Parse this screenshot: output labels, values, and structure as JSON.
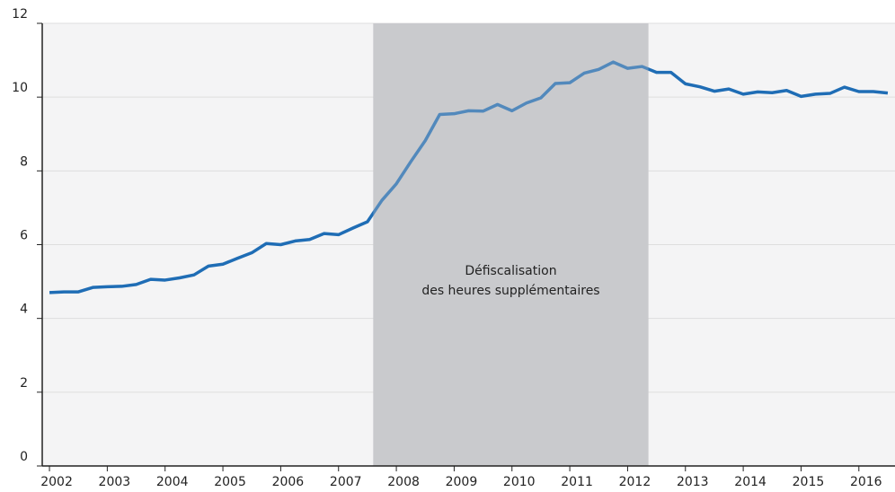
{
  "chart_data": {
    "type": "line",
    "x": [
      2002,
      2002.25,
      2002.5,
      2002.75,
      2003,
      2003.25,
      2003.5,
      2003.75,
      2004,
      2004.25,
      2004.5,
      2004.75,
      2005,
      2005.25,
      2005.5,
      2005.75,
      2006,
      2006.25,
      2006.5,
      2006.75,
      2007,
      2007.25,
      2007.5,
      2007.75,
      2008,
      2008.25,
      2008.5,
      2008.75,
      2009,
      2009.25,
      2009.5,
      2009.75,
      2010,
      2010.25,
      2010.5,
      2010.75,
      2011,
      2011.25,
      2011.5,
      2011.75,
      2012,
      2012.25,
      2012.5,
      2012.75,
      2013,
      2013.25,
      2013.5,
      2013.75,
      2014,
      2014.25,
      2014.5,
      2014.75,
      2015,
      2015.25,
      2015.5,
      2015.75,
      2016,
      2016.25,
      2016.5
    ],
    "series": [
      {
        "color": "#1f6db5",
        "values": [
          4.7,
          4.72,
          4.72,
          4.84,
          4.86,
          4.87,
          4.92,
          5.06,
          5.04,
          5.1,
          5.18,
          5.42,
          5.47,
          5.63,
          5.78,
          6.03,
          6.0,
          6.1,
          6.14,
          6.3,
          6.27,
          6.45,
          6.62,
          7.2,
          7.65,
          8.25,
          8.82,
          9.53,
          9.55,
          9.63,
          9.62,
          9.8,
          9.63,
          9.84,
          9.98,
          10.37,
          10.39,
          10.65,
          10.75,
          10.95,
          10.78,
          10.83,
          10.67,
          10.67,
          10.36,
          10.28,
          10.16,
          10.22,
          10.08,
          10.14,
          10.12,
          10.18,
          10.02,
          10.08,
          10.1,
          10.27,
          10.15,
          10.15,
          10.11
        ]
      }
    ],
    "xlim": [
      2001.875,
      2016.625
    ],
    "xticks": [
      2002,
      2003,
      2004,
      2005,
      2006,
      2007,
      2008,
      2009,
      2010,
      2011,
      2012,
      2013,
      2014,
      2015,
      2016
    ],
    "ylim": [
      0,
      12
    ],
    "yticks": [
      0,
      2,
      4,
      6,
      8,
      10,
      12
    ],
    "grid": true,
    "shade": {
      "from": 2007.6,
      "to": 2012.36,
      "color": "#c9cacd",
      "label": [
        "Défiscalisation",
        "des heures supplémentaires"
      ]
    }
  }
}
